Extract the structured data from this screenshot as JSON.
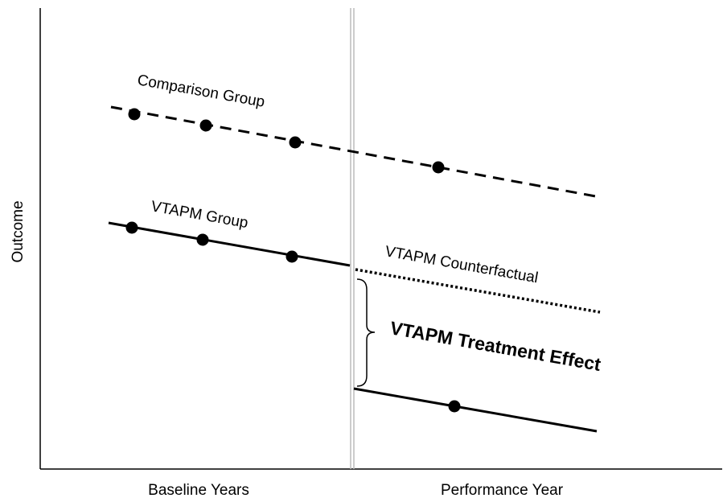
{
  "labels": {
    "comparison": "Comparison Group",
    "vtapm": "VTAPM Group",
    "counterfactual": "VTAPM Counterfactual",
    "effect": "VTAPM Treatment Effect"
  },
  "axes": {
    "y": "Outcome",
    "x_left": "Baseline Years",
    "x_right": "Performance Year"
  }
}
